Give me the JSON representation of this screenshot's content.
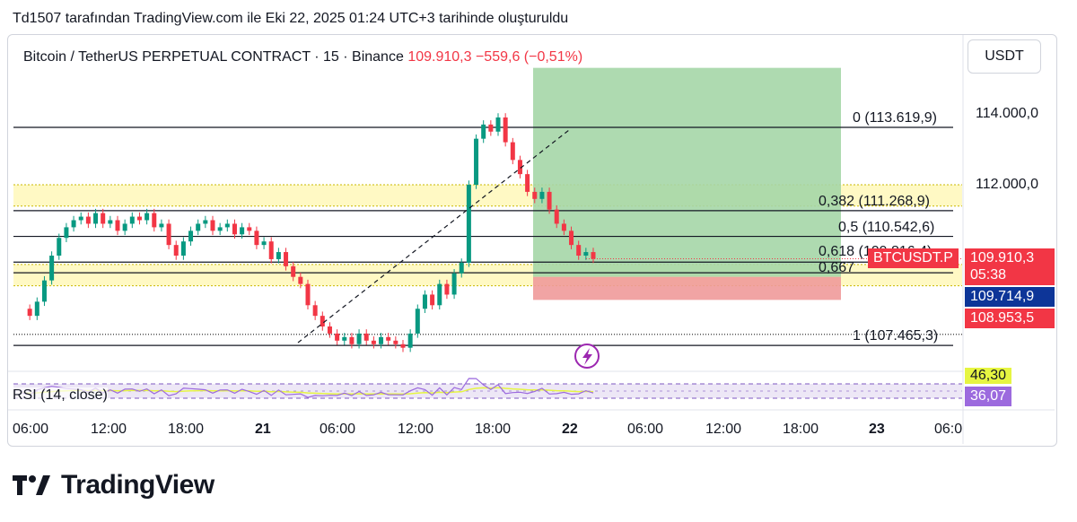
{
  "header_note": "Td1507 tarafından TradingView.com ile Eki 22, 2025 01:24 UTC+3 tarihinde oluşturuldu",
  "symbol": {
    "name": "Bitcoin / TetherUS PERPETUAL CONTRACT · 15 · Binance",
    "last": "109.910,3",
    "change": "−559,6 (−0,51%)"
  },
  "currency_button": "USDT",
  "price_axis": {
    "ticks": [
      {
        "value": 114000,
        "label": "114.000,0"
      },
      {
        "value": 112000,
        "label": "112.000,0"
      }
    ]
  },
  "price_tags": [
    {
      "label": "109.910,3",
      "value": 109910.3,
      "color": "#f23645"
    },
    {
      "label": "05:38",
      "value": 109650,
      "color": "#f23645"
    },
    {
      "label": "109.714,9",
      "value": 109400,
      "color": "#0d3598"
    },
    {
      "label": "108.953,5",
      "value": 108953.5,
      "color": "#f23645"
    }
  ],
  "ticker_tag": {
    "label": "BTCUSDT.P",
    "color": "#f23645"
  },
  "fib_levels": [
    {
      "ratio": "0",
      "price": 113619.9,
      "label": "0 (113.619,9)"
    },
    {
      "ratio": "0.382",
      "price": 111268.9,
      "label": "0,382 (111.268,9)"
    },
    {
      "ratio": "0.5",
      "price": 110542.6,
      "label": "0,5 (110.542,6)"
    },
    {
      "ratio": "0.618",
      "price": 109816.4,
      "label": "0,618 (109.816,4)"
    },
    {
      "ratio": "0.667",
      "price": 109515,
      "label": "0,667"
    },
    {
      "ratio": "1",
      "price": 107465.3,
      "label": "1 (107.465,3)"
    }
  ],
  "zones": [
    {
      "name": "yellow-zone-upper",
      "top": 112000,
      "bottom": 111400,
      "color": "#fff9c4"
    },
    {
      "name": "yellow-zone-lower",
      "top": 109750,
      "bottom": 109150,
      "color": "#fff9c4"
    }
  ],
  "position": {
    "entry": 109400,
    "target": 115300,
    "stop": 108750,
    "profit_color": "#a5d6a7",
    "loss_color": "#ef9a9a"
  },
  "dashed_support": {
    "price": 107780
  },
  "rsi": {
    "label": "RSI (14, close)",
    "value_top": "46,30",
    "value_bottom": "36,07",
    "color_top": "#e6f542",
    "color_bottom": "#9c6ade"
  },
  "time_axis": [
    {
      "label": "06:00",
      "bold": false
    },
    {
      "label": "12:00",
      "bold": false
    },
    {
      "label": "18:00",
      "bold": false
    },
    {
      "label": "21",
      "bold": true
    },
    {
      "label": "06:00",
      "bold": false
    },
    {
      "label": "12:00",
      "bold": false
    },
    {
      "label": "18:00",
      "bold": false
    },
    {
      "label": "22",
      "bold": true
    },
    {
      "label": "06:00",
      "bold": false
    },
    {
      "label": "12:00",
      "bold": false
    },
    {
      "label": "18:00",
      "bold": false
    },
    {
      "label": "23",
      "bold": true
    },
    {
      "label": "06:0",
      "bold": false
    }
  ],
  "brand": "TradingView",
  "chart_data": {
    "type": "line",
    "series": [
      {
        "values": [
          108500,
          108300,
          108700,
          109300,
          110000,
          110500,
          110800,
          111000,
          111100,
          110900,
          111200,
          110900,
          111000,
          110700,
          110900,
          111100,
          111000,
          111200,
          110800,
          110900,
          110300,
          110000,
          110400,
          110700,
          110900,
          111000,
          110700,
          110800,
          110900,
          110600,
          110800,
          110700,
          110300,
          110400,
          109900,
          110100,
          109700,
          109400,
          109200,
          108600,
          108300,
          108000,
          107800,
          107600,
          107700,
          107500,
          107800,
          107600,
          107500,
          107700,
          107600,
          107500,
          107400,
          107800,
          108500,
          108900,
          108600,
          109200,
          108900,
          109500,
          109800,
          112000,
          113300,
          113700,
          113500,
          113900,
          113200,
          112700,
          112300,
          111800,
          111600,
          111800,
          111300,
          110900,
          110700,
          110300,
          110000,
          110100,
          109910
        ]
      }
    ],
    "ylim": [
      106800,
      115400
    ]
  }
}
